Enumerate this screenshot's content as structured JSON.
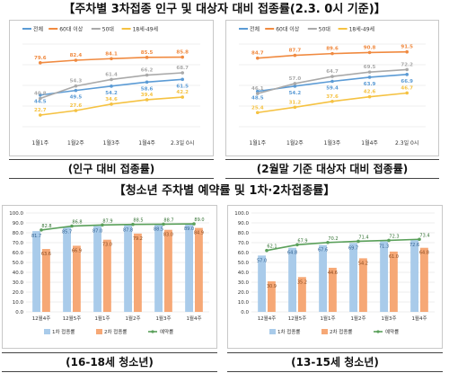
{
  "headings": {
    "top": "【주차별 3차접종 인구 및 대상자 대비 접종률(2.3. 0시 기준)】",
    "bottom": "【청소년 주차별 예약률 및 1차·2차접종률】"
  },
  "captions": {
    "top_left": "(인구 대비 접종률)",
    "top_right": "(2월말 기준 대상자 대비 접종률)",
    "bottom_left": "(16-18세 청소년)",
    "bottom_right": "(13-15세 청소년)"
  },
  "colors": {
    "total": "#5b9bd5",
    "age60": "#f08a40",
    "age50": "#a9a9a9",
    "age18_49": "#f5c242",
    "bar1": "#a9cbea",
    "bar2": "#f6a876",
    "line": "#5aa05a"
  },
  "chart_data": [
    {
      "type": "line",
      "categories": [
        "1월1주",
        "1월2주",
        "1월3주",
        "1월4주",
        "2.3일 0시"
      ],
      "series": [
        {
          "name": "전체",
          "color": "#5b9bd5",
          "values": [
            44.5,
            49.5,
            54.2,
            58.6,
            61.5
          ]
        },
        {
          "name": "60대 이상",
          "color": "#f08a40",
          "values": [
            79.6,
            82.4,
            84.1,
            85.5,
            85.8
          ]
        },
        {
          "name": "50대",
          "color": "#a9a9a9",
          "values": [
            40.8,
            54.3,
            61.4,
            66.2,
            68.7
          ]
        },
        {
          "name": "18세-49세",
          "color": "#f5c242",
          "values": [
            22.7,
            27.6,
            34.6,
            39.4,
            42.2
          ]
        }
      ],
      "ylim": [
        10,
        100
      ]
    },
    {
      "type": "line",
      "categories": [
        "1월1주",
        "1월2주",
        "1월3주",
        "1월4주",
        "2.3일 0시"
      ],
      "series": [
        {
          "name": "전체",
          "color": "#5b9bd5",
          "values": [
            48.5,
            54.2,
            59.4,
            63.9,
            66.9
          ]
        },
        {
          "name": "60대 이상",
          "color": "#f08a40",
          "values": [
            84.7,
            87.7,
            89.6,
            90.8,
            91.5
          ]
        },
        {
          "name": "50대",
          "color": "#a9a9a9",
          "values": [
            46.1,
            57.0,
            64.7,
            69.5,
            72.2
          ]
        },
        {
          "name": "18세-49세",
          "color": "#f5c242",
          "values": [
            25.4,
            31.2,
            37.6,
            42.6,
            46.7
          ]
        }
      ],
      "ylim": [
        10,
        100
      ]
    },
    {
      "type": "bar",
      "categories": [
        "12월4주",
        "12월5주",
        "1월1주",
        "1월2주",
        "1월3주",
        "1월4주"
      ],
      "series": [
        {
          "name": "1차 접종률",
          "color": "#a9cbea",
          "values": [
            81.7,
            85.7,
            87.0,
            87.8,
            88.5,
            89.0
          ]
        },
        {
          "name": "2차 접종률",
          "color": "#f6a876",
          "values": [
            63.6,
            66.9,
            73.0,
            79.2,
            83.0,
            84.9
          ]
        },
        {
          "name": "예약률",
          "color": "#5aa05a",
          "type": "line",
          "values": [
            82.8,
            86.8,
            87.9,
            88.5,
            88.7,
            89.0
          ]
        }
      ],
      "yticks": [
        "0.0",
        "10.0",
        "20.0",
        "30.0",
        "40.0",
        "50.0",
        "60.0",
        "70.0",
        "80.0",
        "90.0",
        "100.0"
      ],
      "ylim": [
        0,
        100
      ]
    },
    {
      "type": "bar",
      "categories": [
        "12월4주",
        "12월5주",
        "1월1주",
        "1월2주",
        "1월3주",
        "1월4주"
      ],
      "series": [
        {
          "name": "1차 접종률",
          "color": "#a9cbea",
          "values": [
            57.0,
            64.8,
            67.6,
            69.7,
            71.3,
            72.6
          ]
        },
        {
          "name": "2차 접종률",
          "color": "#f6a876",
          "values": [
            30.9,
            35.2,
            44.6,
            54.2,
            61.0,
            64.8
          ]
        },
        {
          "name": "예약률",
          "color": "#5aa05a",
          "type": "line",
          "values": [
            62.1,
            67.9,
            70.2,
            71.4,
            72.3,
            73.4
          ]
        }
      ],
      "yticks": [
        "0.0",
        "10.0",
        "20.0",
        "30.0",
        "40.0",
        "50.0",
        "60.0",
        "70.0",
        "80.0",
        "90.0",
        "100.0"
      ],
      "ylim": [
        0,
        100
      ]
    }
  ]
}
